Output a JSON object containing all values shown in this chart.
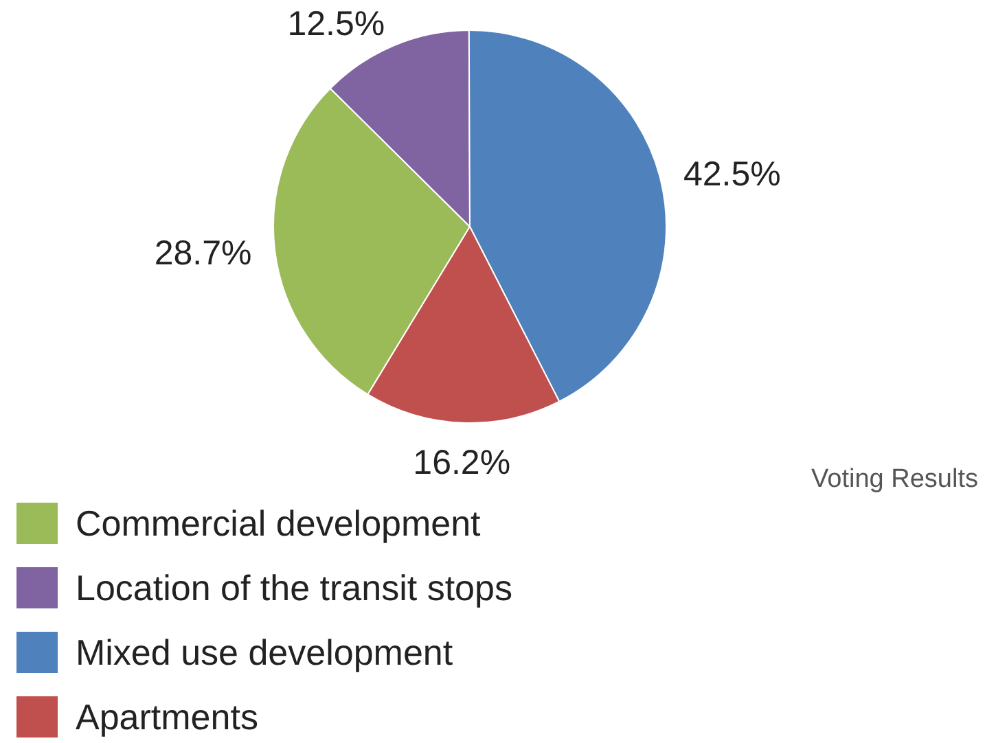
{
  "chart_data": {
    "type": "pie",
    "title": "Voting Results",
    "categories": [
      "Commercial development",
      "Location of the transit stops",
      "Mixed use development",
      "Apartments"
    ],
    "values": [
      28.7,
      12.5,
      42.5,
      16.2
    ],
    "colors": [
      "#9bbb59",
      "#8064a2",
      "#4f81bd",
      "#c0504d"
    ],
    "value_labels": [
      "28.7%",
      "12.5%",
      "42.5%",
      "16.2%"
    ],
    "legend": "bottom left"
  }
}
